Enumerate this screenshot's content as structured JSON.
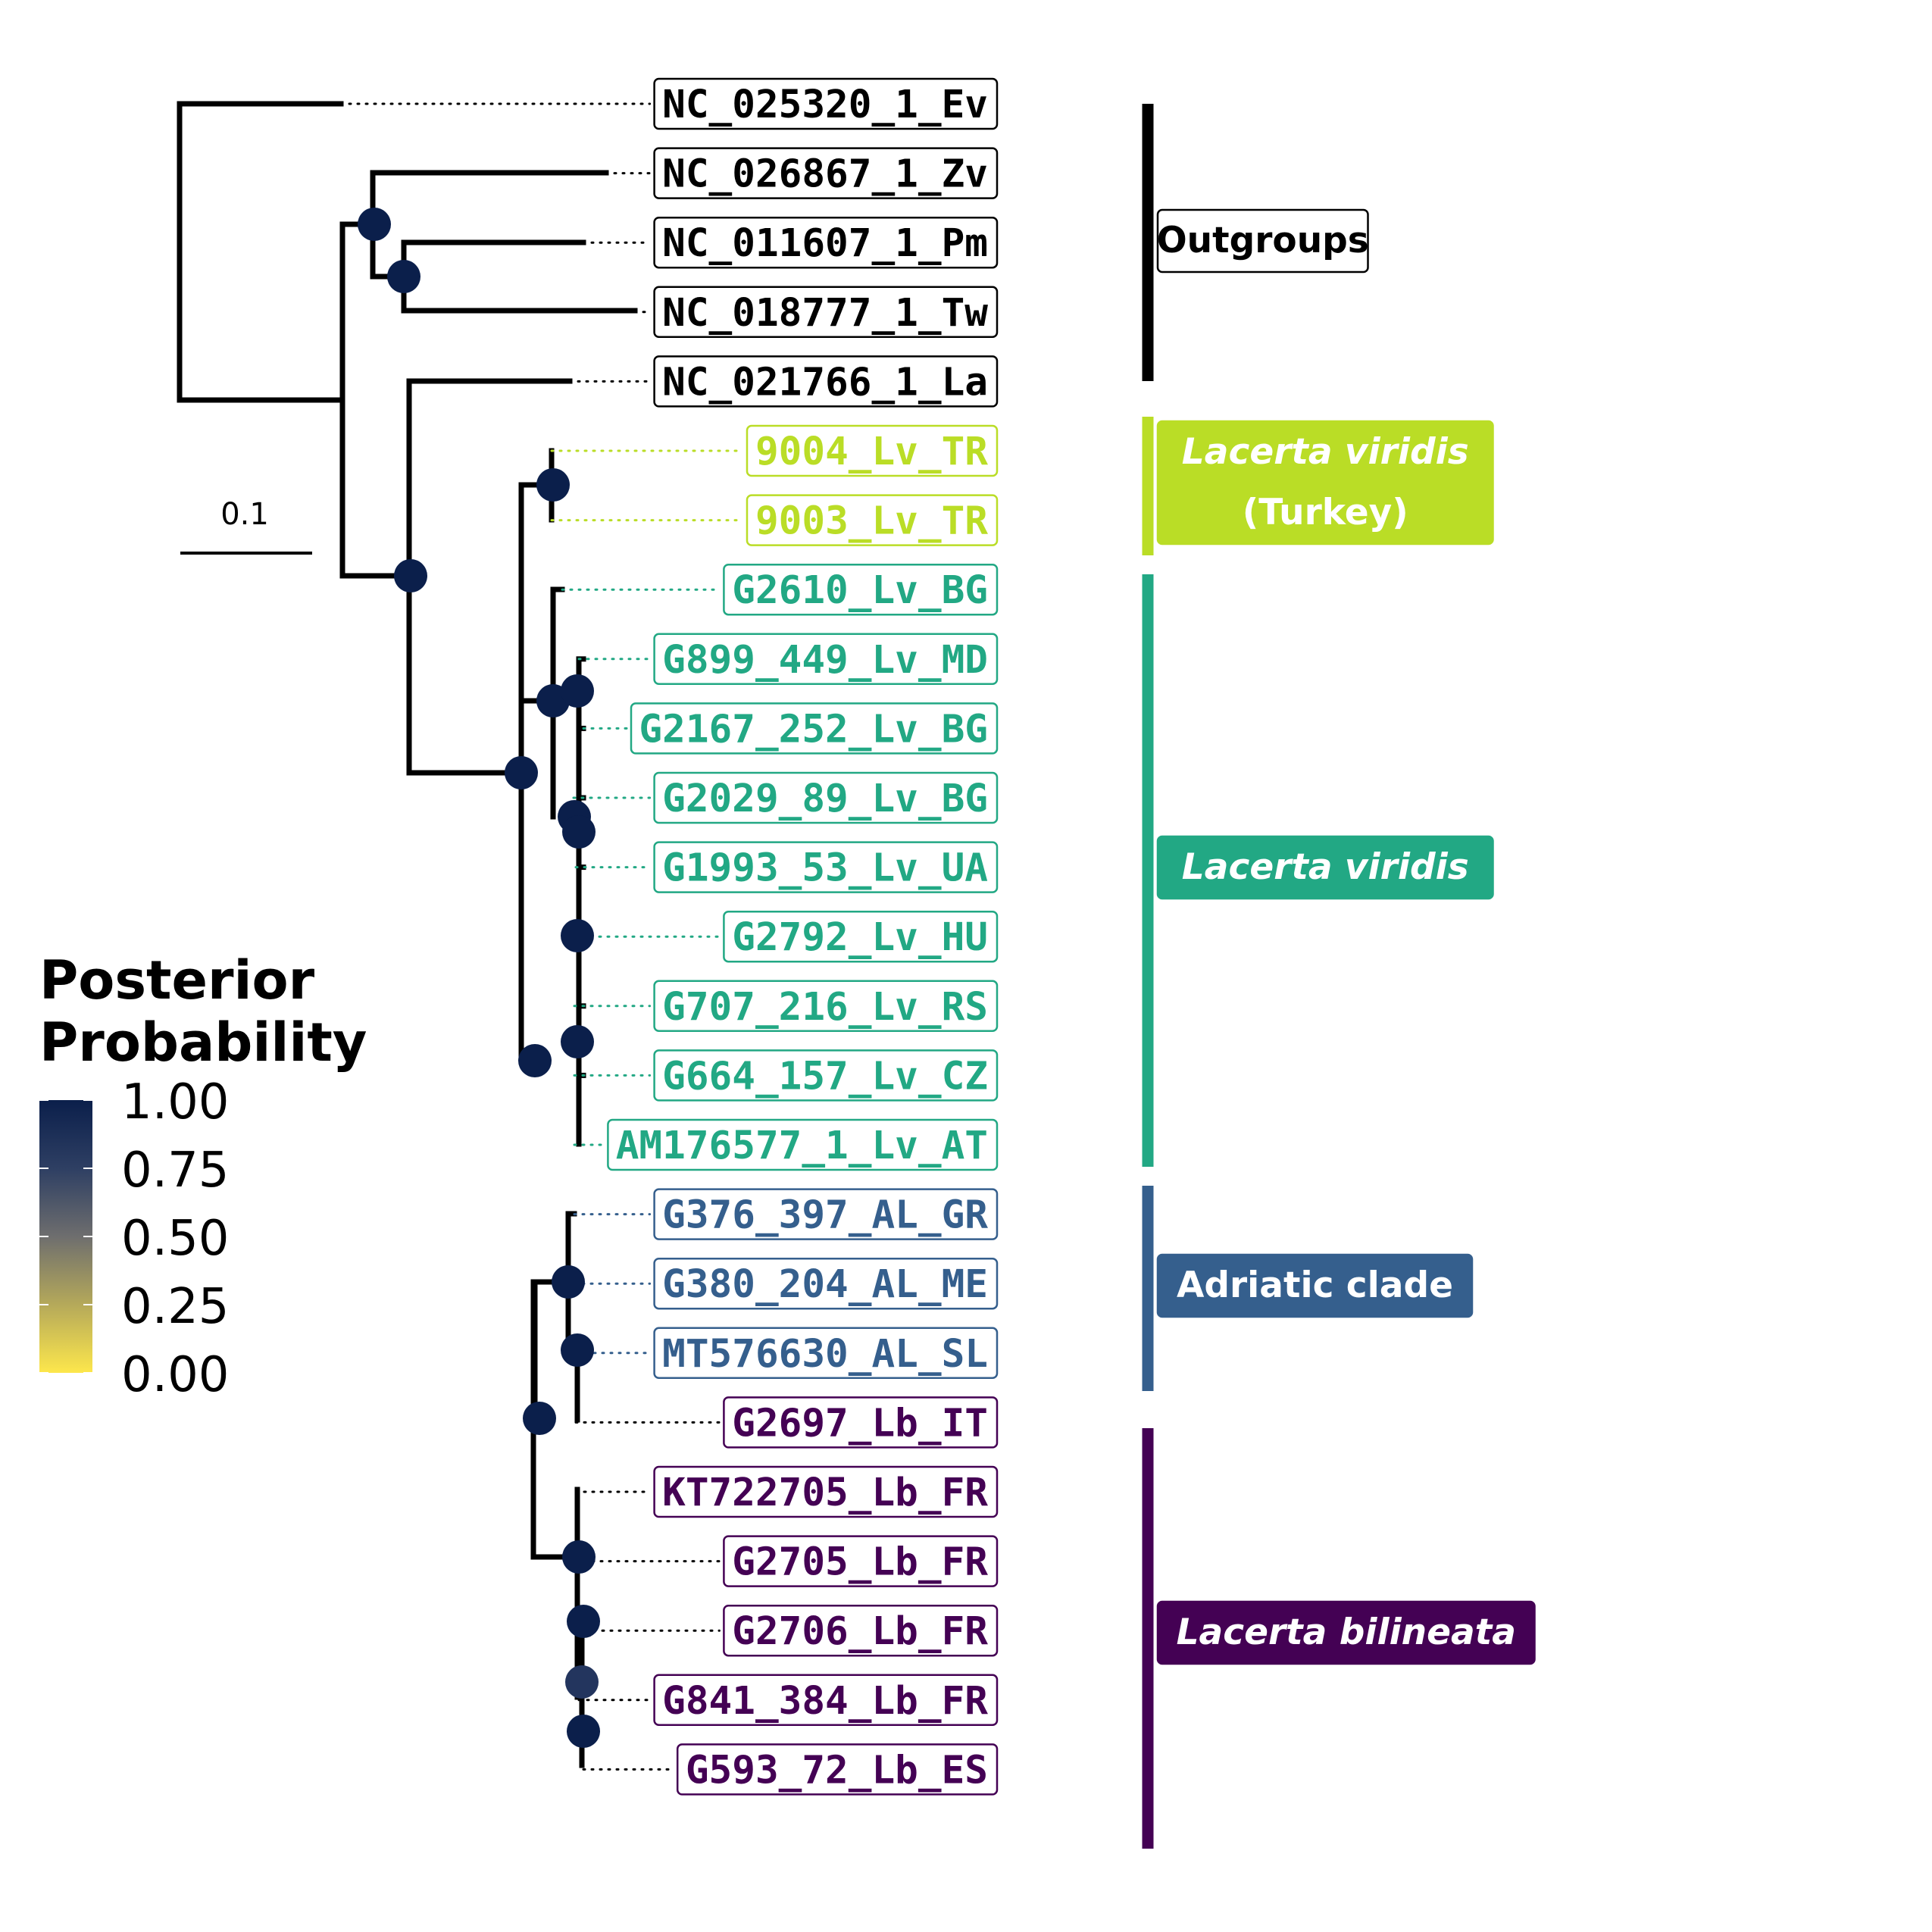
{
  "tips": [
    {
      "label": "NC_025320_1_Ev",
      "group": "outgroups"
    },
    {
      "label": "NC_026867_1_Zv",
      "group": "outgroups"
    },
    {
      "label": "NC_011607_1_Pm",
      "group": "outgroups"
    },
    {
      "label": "NC_018777_1_Tw",
      "group": "outgroups"
    },
    {
      "label": "NC_021766_1_La",
      "group": "outgroups"
    },
    {
      "label": "9004_Lv_TR",
      "group": "turkey"
    },
    {
      "label": "9003_Lv_TR",
      "group": "turkey"
    },
    {
      "label": "G2610_Lv_BG",
      "group": "viridis"
    },
    {
      "label": "G899_449_Lv_MD",
      "group": "viridis"
    },
    {
      "label": "G2167_252_Lv_BG",
      "group": "viridis"
    },
    {
      "label": "G2029_89_Lv_BG",
      "group": "viridis"
    },
    {
      "label": "G1993_53_Lv_UA",
      "group": "viridis"
    },
    {
      "label": "G2792_Lv_HU",
      "group": "viridis"
    },
    {
      "label": "G707_216_Lv_RS",
      "group": "viridis"
    },
    {
      "label": "G664_157_Lv_CZ",
      "group": "viridis"
    },
    {
      "label": "AM176577_1_Lv_AT",
      "group": "viridis"
    },
    {
      "label": "G376_397_AL_GR",
      "group": "adriatic"
    },
    {
      "label": "G380_204_AL_ME",
      "group": "adriatic"
    },
    {
      "label": "MT576630_AL_SL",
      "group": "adriatic"
    },
    {
      "label": "G2697_Lb_IT",
      "group": "bilineata"
    },
    {
      "label": "KT722705_Lb_FR",
      "group": "bilineata"
    },
    {
      "label": "G2705_Lb_FR",
      "group": "bilineata"
    },
    {
      "label": "G2706_Lb_FR",
      "group": "bilineata"
    },
    {
      "label": "G841_384_Lb_FR",
      "group": "bilineata"
    },
    {
      "label": "G593_72_Lb_ES",
      "group": "bilineata"
    }
  ],
  "groups": {
    "outgroups": {
      "color": "#000000",
      "label_lines": [
        "Outgroups"
      ],
      "italic": false,
      "label_style": "outline"
    },
    "turkey": {
      "color": "#BADD26",
      "label_lines": [
        "Lacerta viridis",
        "(Turkey)"
      ],
      "italic": true,
      "label_style": "filled"
    },
    "viridis": {
      "color": "#22A884",
      "label_lines": [
        "Lacerta viridis"
      ],
      "italic": true,
      "label_style": "filled"
    },
    "adriatic": {
      "color": "#355F8D",
      "label_lines": [
        "Adriatic clade"
      ],
      "italic": false,
      "label_style": "filled"
    },
    "bilineata": {
      "color": "#440154",
      "label_lines": [
        "Lacerta bilineata"
      ],
      "italic": true,
      "label_style": "filled"
    }
  },
  "scale_bar": {
    "label": "0.1"
  },
  "posterior_nodes": [
    {
      "node": "Zv+Pm+Tw",
      "pp": 1.0
    },
    {
      "node": "Pm+Tw",
      "pp": 1.0
    },
    {
      "node": "La+ingroup",
      "pp": 1.0
    },
    {
      "node": "Turkey",
      "pp": 1.0
    },
    {
      "node": "ingroup",
      "pp": 1.0
    },
    {
      "node": "viridis",
      "pp": 1.0
    },
    {
      "node": "viridis-sub",
      "pp": 1.0
    },
    {
      "node": "viridis-sub2",
      "pp": 1.0
    },
    {
      "node": "viridis-sub3",
      "pp": 1.0
    },
    {
      "node": "viridis-HU",
      "pp": 1.0
    },
    {
      "node": "viridis-CZ",
      "pp": 1.0
    },
    {
      "node": "adriatic+bilineata",
      "pp": 1.0
    },
    {
      "node": "adriatic",
      "pp": 1.0
    },
    {
      "node": "adriatic-sub",
      "pp": 1.0
    },
    {
      "node": "bilineata+adriatic",
      "pp": 1.0
    },
    {
      "node": "bilineata",
      "pp": 1.0
    },
    {
      "node": "bilineata-sub",
      "pp": 1.0
    },
    {
      "node": "bilineata-FR",
      "pp": 0.9
    },
    {
      "node": "bilineata-ES",
      "pp": 1.0
    }
  ],
  "legend": {
    "title_lines": [
      "Posterior",
      "Probability"
    ],
    "ticks": [
      "1.00",
      "0.75",
      "0.50",
      "0.25",
      "0.00"
    ],
    "color_high": "#0B1F4B",
    "color_low": "#FDE74C"
  }
}
